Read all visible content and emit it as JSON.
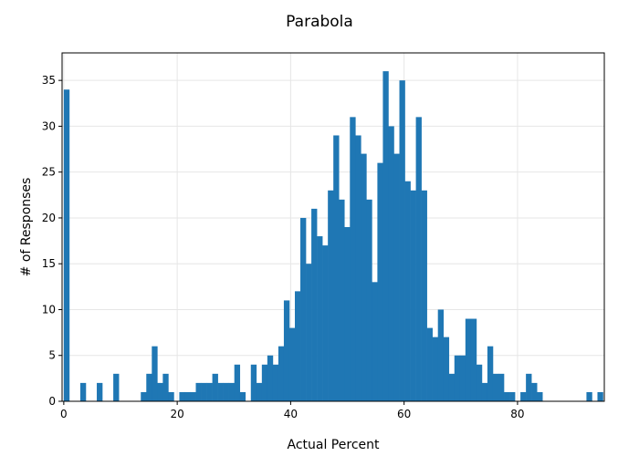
{
  "chart_data": {
    "type": "bar",
    "title": "Parabola",
    "xlabel": "Actual Percent",
    "ylabel": "# of Responses",
    "xlim": [
      -0.3,
      95.3
    ],
    "ylim": [
      0,
      38
    ],
    "xticks": [
      0,
      20,
      40,
      60,
      80
    ],
    "yticks": [
      0,
      5,
      10,
      15,
      20,
      25,
      30,
      35
    ],
    "grid": true,
    "bar_color": "#1f77b4",
    "bin_width": 0.97,
    "bins_start": [
      0.0,
      0.97,
      1.94,
      2.91,
      3.88,
      4.85,
      5.82,
      6.79,
      7.76,
      8.73,
      9.7,
      10.67,
      11.64,
      12.61,
      13.58,
      14.55,
      15.52,
      16.49,
      17.46,
      18.43,
      19.4,
      20.37,
      21.34,
      22.31,
      23.28,
      24.25,
      25.22,
      26.19,
      27.16,
      28.13,
      29.1,
      30.07,
      31.04,
      32.01,
      32.98,
      33.95,
      34.92,
      35.89,
      36.86,
      37.83,
      38.8,
      39.77,
      40.74,
      41.71,
      42.68,
      43.65,
      44.62,
      45.59,
      46.56,
      47.53,
      48.5,
      49.47,
      50.44,
      51.41,
      52.38,
      53.35,
      54.32,
      55.29,
      56.26,
      57.23,
      58.2,
      59.17,
      60.14,
      61.11,
      62.08,
      63.05,
      64.02,
      64.99,
      65.96,
      66.93,
      67.9,
      68.87,
      69.84,
      70.81,
      71.78,
      72.75,
      73.72,
      74.69,
      75.66,
      76.63,
      77.6,
      78.57,
      79.54,
      80.51,
      81.48,
      82.45,
      83.42,
      84.39,
      85.36,
      86.33,
      87.3,
      88.27,
      89.24,
      90.21,
      91.18,
      92.15,
      93.12,
      94.09
    ],
    "values": [
      34,
      0,
      0,
      2,
      0,
      0,
      2,
      0,
      0,
      3,
      0,
      0,
      0,
      0,
      1,
      3,
      6,
      2,
      3,
      1,
      0,
      1,
      1,
      1,
      2,
      2,
      2,
      3,
      2,
      2,
      2,
      4,
      1,
      0,
      4,
      2,
      4,
      5,
      4,
      6,
      11,
      8,
      12,
      20,
      15,
      21,
      18,
      17,
      23,
      29,
      22,
      19,
      31,
      29,
      27,
      22,
      13,
      26,
      36,
      30,
      27,
      35,
      24,
      23,
      31,
      23,
      8,
      7,
      10,
      7,
      3,
      5,
      5,
      9,
      9,
      4,
      2,
      6,
      3,
      3,
      1,
      1,
      0,
      1,
      3,
      2,
      1,
      0,
      0,
      0,
      0,
      0,
      0,
      0,
      0,
      1,
      0,
      1
    ]
  }
}
